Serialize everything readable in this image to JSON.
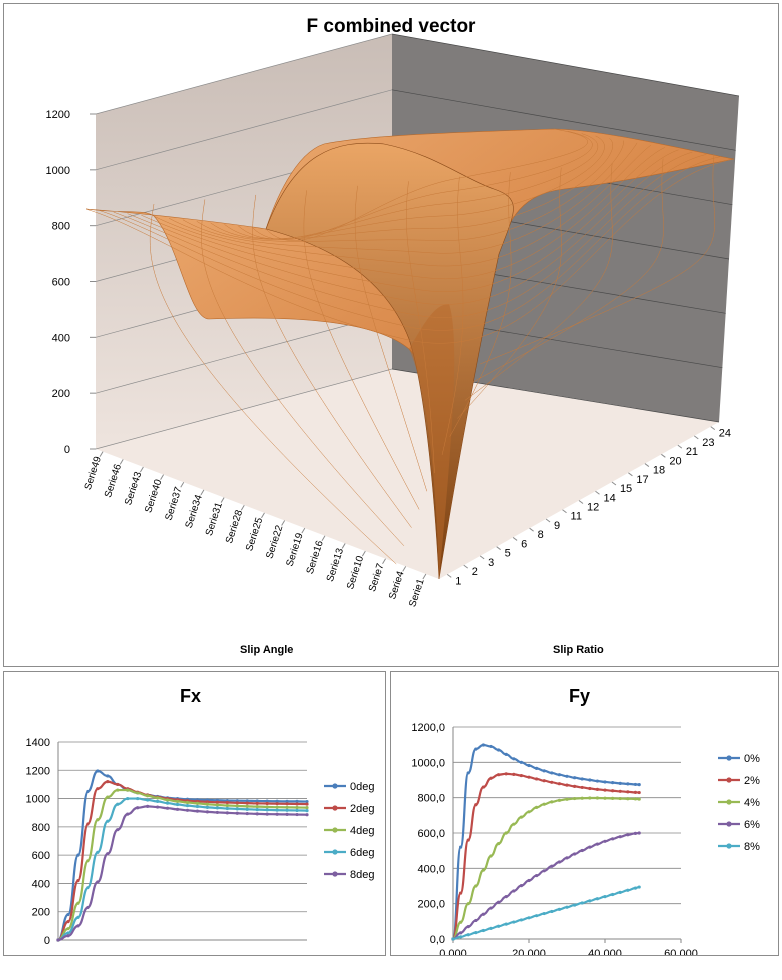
{
  "chart_data": [
    {
      "type": "surface",
      "title": "F combined vector",
      "xlabel": "Slip Angle",
      "ylabel": "Slip Ratio",
      "z_ticks": [
        "0",
        "200",
        "400",
        "600",
        "800",
        "1000",
        "1200"
      ],
      "zlim": [
        0,
        1200
      ],
      "slip_angle_ticks": [
        "Serie1",
        "Serie4",
        "Serie7",
        "Serie10",
        "Serie13",
        "Serie16",
        "Serie19",
        "Serie22",
        "Serie25",
        "Serie28",
        "Serie31",
        "Serie34",
        "Serie37",
        "Serie40",
        "Serie43",
        "Serie46",
        "Serie49"
      ],
      "slip_ratio_ticks": [
        "1",
        "2",
        "3",
        "5",
        "6",
        "8",
        "9",
        "11",
        "12",
        "14",
        "15",
        "17",
        "18",
        "20",
        "21",
        "23",
        "24"
      ],
      "colors": {
        "surface": "#e8a060",
        "surface_dark": "#a85a1c",
        "back_wall": "#7f7f7f",
        "side_wall": "#ddd3cd",
        "floor": "#efe3dc"
      }
    },
    {
      "type": "line",
      "title": "Fx",
      "ylim": [
        0,
        1400
      ],
      "y_ticks": [
        "0",
        "200",
        "400",
        "600",
        "800",
        "1000",
        "1200",
        "1400"
      ],
      "x": [
        0,
        2,
        4,
        6,
        8,
        10,
        12,
        14,
        16,
        18,
        20,
        22,
        24,
        26,
        28,
        30,
        32,
        34,
        36,
        38,
        40,
        42,
        44,
        46,
        48,
        50
      ],
      "series": [
        {
          "name": "0deg",
          "color": "#4a7ebb",
          "values": [
            0,
            180,
            600,
            1050,
            1195,
            1160,
            1100,
            1060,
            1040,
            1025,
            1015,
            1005,
            1000,
            995,
            992,
            990,
            988,
            986,
            985,
            984,
            983,
            982,
            981,
            980,
            980,
            979
          ]
        },
        {
          "name": "2deg",
          "color": "#be4b48",
          "values": [
            0,
            130,
            420,
            820,
            1070,
            1120,
            1100,
            1070,
            1045,
            1025,
            1010,
            1000,
            992,
            985,
            980,
            977,
            974,
            972,
            970,
            968,
            966,
            965,
            964,
            963,
            962,
            961
          ]
        },
        {
          "name": "4deg",
          "color": "#98b954",
          "values": [
            0,
            80,
            260,
            560,
            850,
            1010,
            1060,
            1060,
            1040,
            1020,
            1005,
            990,
            980,
            972,
            966,
            960,
            955,
            951,
            948,
            945,
            943,
            941,
            939,
            938,
            937,
            936
          ]
        },
        {
          "name": "6deg",
          "color": "#4bacc6",
          "values": [
            0,
            50,
            160,
            370,
            620,
            840,
            960,
            1000,
            1000,
            990,
            980,
            968,
            958,
            950,
            944,
            938,
            934,
            930,
            927,
            924,
            922,
            920,
            918,
            917,
            916,
            915
          ]
        },
        {
          "name": "8deg",
          "color": "#7d5fa0",
          "values": [
            0,
            30,
            100,
            230,
            410,
            610,
            780,
            890,
            935,
            945,
            940,
            932,
            924,
            917,
            911,
            906,
            902,
            899,
            896,
            894,
            892,
            890,
            889,
            888,
            887,
            886
          ]
        }
      ]
    },
    {
      "type": "line",
      "title": "Fy",
      "xlim": [
        0,
        60000
      ],
      "ylim": [
        0,
        1200
      ],
      "x_ticks": [
        "0,000",
        "20,000",
        "40,000",
        "60,000"
      ],
      "y_ticks": [
        "0,0",
        "200,0",
        "400,0",
        "600,0",
        "800,0",
        "1000,0",
        "1200,0"
      ],
      "x": [
        0,
        2000,
        4000,
        6000,
        8000,
        10000,
        12000,
        14000,
        16000,
        18000,
        20000,
        22000,
        24000,
        26000,
        28000,
        30000,
        32000,
        34000,
        36000,
        38000,
        40000,
        42000,
        44000,
        46000,
        48000,
        49000
      ],
      "series": [
        {
          "name": "0%",
          "color": "#4a7ebb",
          "values": [
            0,
            520,
            940,
            1075,
            1098,
            1090,
            1070,
            1045,
            1020,
            1000,
            982,
            966,
            952,
            940,
            930,
            921,
            913,
            906,
            900,
            894,
            889,
            885,
            881,
            878,
            875,
            874
          ]
        },
        {
          "name": "2%",
          "color": "#be4b48",
          "values": [
            0,
            260,
            560,
            760,
            860,
            910,
            930,
            935,
            932,
            925,
            916,
            906,
            896,
            887,
            879,
            871,
            864,
            858,
            852,
            847,
            843,
            839,
            836,
            833,
            830,
            829
          ]
        },
        {
          "name": "4%",
          "color": "#98b954",
          "values": [
            0,
            95,
            200,
            300,
            390,
            470,
            540,
            600,
            650,
            690,
            720,
            745,
            763,
            776,
            785,
            791,
            795,
            797,
            798,
            798,
            797,
            796,
            795,
            794,
            793,
            792
          ]
        },
        {
          "name": "6%",
          "color": "#7d5fa0",
          "values": [
            0,
            35,
            70,
            105,
            140,
            175,
            208,
            240,
            272,
            302,
            331,
            359,
            386,
            412,
            436,
            459,
            481,
            501,
            520,
            537,
            553,
            567,
            579,
            590,
            598,
            600
          ]
        },
        {
          "name": "8%",
          "color": "#4bacc6",
          "values": [
            0,
            12,
            24,
            36,
            48,
            60,
            72,
            84,
            96,
            108,
            120,
            132,
            144,
            156,
            168,
            180,
            192,
            204,
            216,
            228,
            240,
            252,
            264,
            276,
            288,
            294
          ]
        }
      ]
    }
  ]
}
